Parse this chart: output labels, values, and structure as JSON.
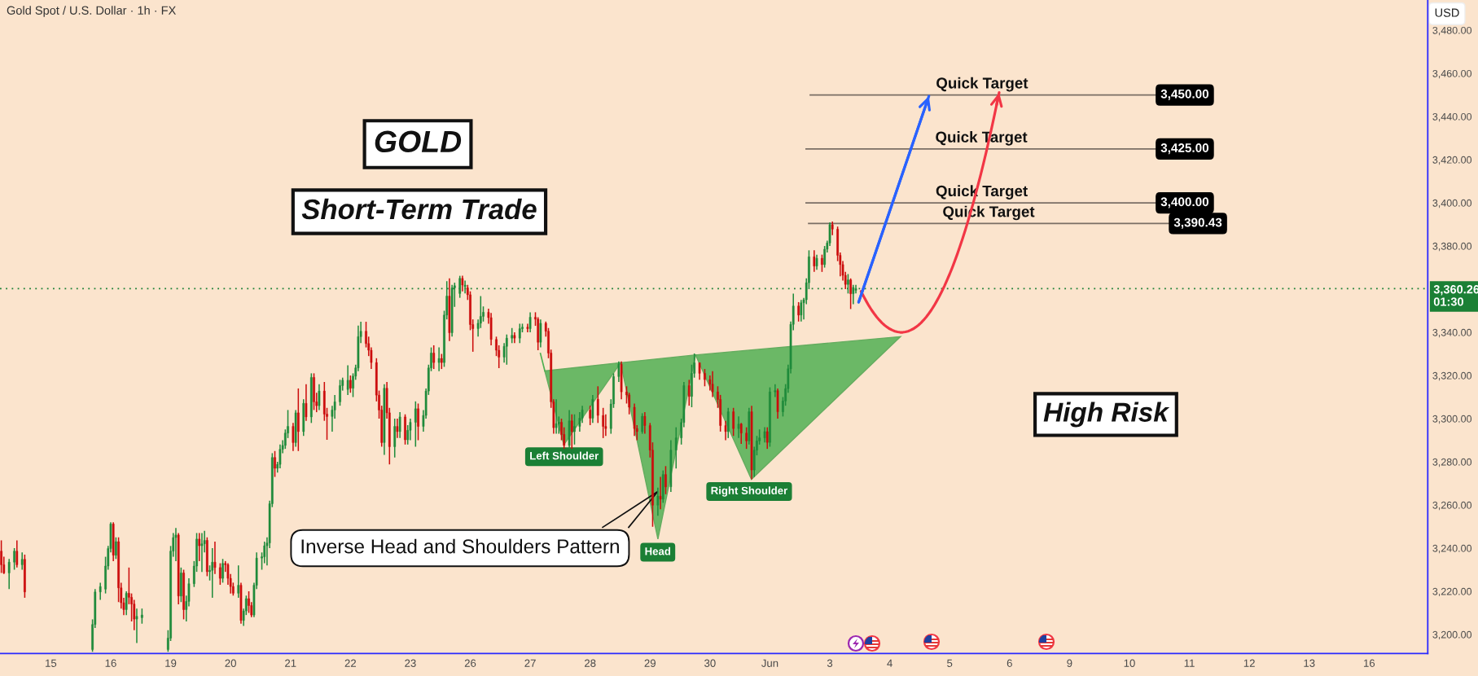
{
  "chart_data": {
    "type": "candlestick",
    "title": "Gold Spot / U.S. Dollar · 1h · FX",
    "ylabel": "USD",
    "ylim": [
      3191.2,
      3494
    ],
    "yticks": [
      {
        "value": 3200,
        "label": "3,200.00"
      },
      {
        "value": 3220,
        "label": "3,220.00"
      },
      {
        "value": 3240,
        "label": "3,240.00"
      },
      {
        "value": 3260,
        "label": "3,260.00"
      },
      {
        "value": 3280,
        "label": "3,280.00"
      },
      {
        "value": 3300,
        "label": "3,300.00"
      },
      {
        "value": 3320,
        "label": "3,320.00"
      },
      {
        "value": 3340,
        "label": "3,340.00"
      },
      {
        "value": 3380,
        "label": "3,380.00"
      },
      {
        "value": 3400,
        "label": "3,400.00"
      },
      {
        "value": 3420,
        "label": "3,420.00"
      },
      {
        "value": 3440,
        "label": "3,440.00"
      },
      {
        "value": 3460,
        "label": "3,460.00"
      },
      {
        "value": 3480,
        "label": "3,480.00"
      }
    ],
    "categories": [
      null,
      null,
      null,
      null,
      null,
      null,
      null,
      null,
      null,
      null,
      null,
      null,
      null,
      null,
      null,
      null,
      null,
      null,
      null,
      "15",
      null,
      null,
      null,
      null,
      null,
      null,
      null,
      null,
      null,
      null,
      null,
      null,
      null,
      null,
      null,
      null,
      null,
      null,
      null,
      null,
      null,
      null,
      "16",
      null,
      null,
      null,
      null,
      null,
      null,
      null,
      null,
      null,
      null,
      null,
      null,
      null,
      null,
      null,
      null,
      null,
      null,
      null,
      null,
      null,
      null,
      "19",
      null,
      null,
      null,
      null,
      null,
      null,
      null,
      null,
      null,
      null,
      null,
      null,
      null,
      null,
      null,
      null,
      null,
      null,
      null,
      null,
      null,
      null,
      "20",
      null,
      null,
      null,
      null,
      null,
      null,
      null,
      null,
      null,
      null,
      null,
      null,
      null,
      null,
      null,
      null,
      null,
      null,
      null,
      null,
      null,
      null,
      "21",
      null,
      null,
      null,
      null,
      null,
      null,
      null,
      null,
      null,
      null,
      null,
      null,
      null,
      null,
      null,
      null,
      null,
      null,
      null,
      null,
      null,
      null,
      "22",
      null,
      null,
      null,
      null,
      null,
      null,
      null,
      null,
      null,
      null,
      null,
      null,
      null,
      null,
      null,
      null,
      null,
      null,
      null,
      null,
      null,
      null,
      "23",
      null,
      null,
      null,
      null,
      null,
      null,
      null,
      null,
      null,
      null,
      null,
      null,
      null,
      null,
      null,
      null,
      null,
      null,
      null,
      null,
      null,
      null,
      "26",
      null,
      null,
      null,
      null,
      null,
      null,
      null,
      null,
      null,
      null,
      null,
      null,
      null,
      null,
      null,
      null,
      null,
      null,
      null,
      null,
      null,
      null,
      "27",
      null,
      null,
      null,
      null,
      null,
      null,
      null,
      null,
      null,
      null,
      null,
      null,
      null,
      null,
      null,
      null,
      null,
      null,
      null,
      null,
      null,
      null,
      "28",
      null,
      null,
      null,
      null,
      null,
      null,
      null,
      null,
      null,
      null,
      null,
      null,
      null,
      null,
      null,
      null,
      null,
      null,
      null,
      null,
      null,
      null,
      "29",
      null,
      null,
      null,
      null,
      null,
      null,
      null,
      null,
      null,
      null,
      null,
      null,
      null,
      null,
      null,
      null,
      null,
      null,
      null,
      null,
      null,
      null,
      "30",
      null,
      null,
      null,
      null,
      null,
      null,
      null,
      null,
      null,
      null,
      null,
      null,
      null,
      null,
      null,
      null,
      null,
      null,
      null,
      null,
      null,
      null,
      "Jun",
      null,
      null,
      null,
      null,
      null,
      null,
      null,
      null,
      null,
      null,
      null,
      null,
      null,
      null,
      null,
      null,
      null,
      null,
      null,
      null,
      null,
      null,
      "3",
      null,
      null,
      null,
      null,
      null,
      null,
      null,
      null,
      null,
      null,
      null,
      null,
      null,
      null,
      null,
      null,
      null,
      null,
      null,
      null,
      null,
      null,
      "4",
      null,
      null,
      null,
      null,
      null,
      null,
      null,
      null,
      null,
      null,
      null,
      null,
      null,
      null,
      null,
      null,
      null,
      null,
      null,
      null,
      null,
      null,
      "5",
      null,
      null,
      null,
      null,
      null,
      null,
      null,
      null,
      null,
      null,
      null,
      null,
      null,
      null,
      null,
      null,
      null,
      null,
      null,
      null,
      null,
      null,
      "6",
      null,
      null,
      null,
      null,
      null,
      null,
      null,
      null,
      null,
      null,
      null,
      null,
      null,
      null,
      null,
      null,
      null,
      null,
      null,
      null,
      null,
      null,
      "9",
      null,
      null,
      null,
      null,
      null,
      null,
      null,
      null,
      null,
      null,
      null,
      null,
      null,
      null,
      null,
      null,
      null,
      null,
      null,
      null,
      null,
      null,
      "10",
      null,
      null,
      null,
      null,
      null,
      null,
      null,
      null,
      null,
      null,
      null,
      null,
      null,
      null,
      null,
      null,
      null,
      null,
      null,
      null,
      null,
      null,
      "11",
      null,
      null,
      null,
      null,
      null,
      null,
      null,
      null,
      null,
      null,
      null,
      null,
      null,
      null,
      null,
      null,
      null,
      null,
      null,
      null,
      null,
      null,
      "12",
      null,
      null,
      null,
      null,
      null,
      null,
      null,
      null,
      null,
      null,
      null,
      null,
      null,
      null,
      null,
      null,
      null,
      null,
      null,
      null,
      null,
      null,
      "13",
      null,
      null,
      null,
      null,
      null,
      null,
      null,
      null,
      null,
      null,
      null,
      null,
      null,
      null,
      null,
      null,
      null,
      null,
      null,
      null,
      null,
      null,
      "16",
      null,
      null,
      null,
      null,
      null,
      null,
      null,
      null,
      null,
      null,
      null,
      null,
      null,
      null,
      null,
      null,
      null,
      null,
      null,
      null,
      null,
      null
    ],
    "ohlc": [
      [
        3238.6,
        3243.6,
        3228.5,
        3232.3
      ],
      [
        3232.3,
        3236,
        3228,
        3228.5
      ],
      null,
      [
        3228.5,
        3235,
        3221,
        3233.5
      ],
      null,
      [
        3233.5,
        3240,
        3230,
        3238.6
      ],
      [
        3238.6,
        3243.6,
        3231,
        3232.3
      ],
      null,
      [
        3232.3,
        3238,
        3230,
        3234.8
      ],
      [
        3234.8,
        3237,
        3217,
        3219.7
      ],
      null,
      null,
      null,
      null,
      null,
      null,
      null,
      null,
      null,
      null,
      null,
      null,
      null,
      null,
      null,
      null,
      null,
      null,
      null,
      null,
      null,
      null,
      null,
      null,
      null,
      [
        3193,
        3207,
        3192,
        3204.6
      ],
      [
        3204.6,
        3221,
        3203,
        3219.7
      ],
      null,
      [
        3219.7,
        3224,
        3216,
        3222.2
      ],
      null,
      [
        3221,
        3236,
        3219,
        3231.7
      ],
      [
        3231.7,
        3241,
        3230,
        3239.8
      ],
      [
        3239.8,
        3252,
        3238,
        3251.2
      ],
      [
        3251.2,
        3252,
        3234,
        3236.7
      ],
      [
        3236.7,
        3245,
        3235,
        3243
      ],
      [
        3243,
        3245,
        3215,
        3221.6
      ],
      [
        3221.6,
        3224,
        3212,
        3214.7
      ],
      [
        3214.7,
        3217,
        3209,
        3211.5
      ],
      [
        3211.5,
        3220,
        3209,
        3219.1
      ],
      [
        3219.1,
        3231,
        3214,
        3217.2
      ],
      [
        3217.2,
        3219,
        3206,
        3214.1
      ],
      [
        3214.1,
        3216,
        3202,
        3207.1
      ],
      [
        3207.1,
        3212,
        3196,
        3208.4
      ],
      null,
      [
        3207.8,
        3212,
        3205,
        3209
      ],
      null,
      null,
      null,
      null,
      null,
      null,
      null,
      null,
      null,
      [
        3193,
        3202,
        3192,
        3198.3
      ],
      [
        3198.3,
        3241,
        3197,
        3238.6
      ],
      [
        3238.6,
        3247,
        3236,
        3244.9
      ],
      [
        3244.9,
        3249.3,
        3234,
        3246.1
      ],
      [
        3246.1,
        3247,
        3214,
        3217.8
      ],
      [
        3217.8,
        3231,
        3215,
        3228.5
      ],
      [
        3228.5,
        3230,
        3207,
        3211.5
      ],
      [
        3211.5,
        3218,
        3206,
        3215.3
      ],
      [
        3215.3,
        3226,
        3213,
        3223.5
      ],
      null,
      [
        3223.5,
        3234,
        3222,
        3231.7
      ],
      [
        3231.7,
        3247,
        3229,
        3244.2
      ],
      [
        3244.2,
        3247,
        3234,
        3241.1
      ],
      [
        3241.1,
        3247,
        3229,
        3242
      ],
      [
        3242,
        3248,
        3238,
        3243.6
      ],
      [
        3243.6,
        3245,
        3227,
        3229.1
      ],
      [
        3229.1,
        3232,
        3225,
        3229.7
      ],
      [
        3229.7,
        3240,
        3217,
        3233.5
      ],
      [
        3233.5,
        3243,
        3228,
        3231
      ],
      null,
      [
        3231,
        3233,
        3223,
        3226
      ],
      [
        3226,
        3235,
        3224,
        3232.9
      ],
      [
        3232.9,
        3234,
        3229,
        3232.3
      ],
      [
        3232.3,
        3233,
        3223,
        3226
      ],
      [
        3226,
        3228,
        3219,
        3222.2
      ],
      [
        3222.2,
        3224,
        3218,
        3219.1
      ],
      null,
      [
        3219.1,
        3232,
        3217,
        3222.8
      ],
      [
        3222.8,
        3224,
        3205,
        3206.5
      ],
      [
        3206.5,
        3212,
        3204,
        3210.9
      ],
      [
        3210.9,
        3218,
        3209,
        3216.6
      ],
      [
        3216.6,
        3220,
        3210,
        3213.4
      ],
      [
        3213.4,
        3215,
        3208,
        3209
      ],
      [
        3209,
        3224,
        3208,
        3222.8
      ],
      [
        3222.8,
        3238,
        3221,
        3235.4
      ],
      null,
      [
        3235.4,
        3238,
        3230,
        3236
      ],
      [
        3236,
        3243,
        3233,
        3241.1
      ],
      [
        3241.1,
        3245,
        3232,
        3242.4
      ],
      [
        3242.4,
        3262,
        3240,
        3260.6
      ],
      [
        3260.6,
        3284,
        3259,
        3282
      ],
      [
        3282,
        3285,
        3273,
        3277
      ],
      [
        3277,
        3280,
        3275,
        3278.8
      ],
      [
        3278.8,
        3288,
        3277,
        3285.8
      ],
      [
        3285.8,
        3290,
        3284,
        3287.6
      ],
      [
        3287.6,
        3295,
        3286,
        3293.3
      ],
      [
        3293.3,
        3304,
        3291,
        3296.4
      ],
      null,
      [
        3296.4,
        3298,
        3285,
        3288.9
      ],
      [
        3288.9,
        3304,
        3287,
        3302.7
      ],
      [
        3302.7,
        3314,
        3285,
        3294
      ],
      null,
      [
        3294,
        3309,
        3292,
        3307.1
      ],
      [
        3307.1,
        3316,
        3299,
        3300.8
      ],
      null,
      [
        3300.8,
        3321,
        3298,
        3319.1
      ],
      [
        3319.1,
        3321,
        3304,
        3307.8
      ],
      [
        3307.8,
        3312,
        3303,
        3306
      ],
      [
        3306,
        3316,
        3304,
        3312.8
      ],
      null,
      [
        3312.8,
        3317,
        3299,
        3302.1
      ],
      [
        3302.1,
        3305,
        3290.2,
        3301
      ],
      null,
      [
        3301,
        3306,
        3294,
        3304
      ],
      [
        3304,
        3311,
        3300,
        3307.8
      ],
      null,
      [
        3307.8,
        3318,
        3306,
        3315.3
      ],
      [
        3315.3,
        3319,
        3313,
        3317.8
      ],
      null,
      [
        3313.5,
        3324.7,
        3311,
        3317.8
      ],
      [
        3317.8,
        3320,
        3312,
        3314.1
      ],
      [
        3314.1,
        3321,
        3310,
        3319.7
      ],
      [
        3319.7,
        3325,
        3318,
        3323.5
      ],
      [
        3323.5,
        3343.1,
        3322,
        3338
      ],
      [
        3338,
        3344.9,
        3335,
        3340.5
      ],
      null,
      [
        3340.5,
        3344.9,
        3333,
        3334.8
      ],
      [
        3334.8,
        3338,
        3329,
        3331.7
      ],
      [
        3331.7,
        3333,
        3323,
        3326
      ],
      null,
      [
        3326,
        3328,
        3308,
        3310.9
      ],
      [
        3310.9,
        3313,
        3300,
        3304
      ],
      [
        3304,
        3306,
        3287,
        3288.9
      ],
      [
        3288.9,
        3316,
        3283.2,
        3314.1
      ],
      [
        3314.1,
        3317,
        3300,
        3302.7
      ],
      [
        3302.7,
        3305,
        3278.8,
        3287
      ],
      null,
      [
        3287,
        3300,
        3282,
        3296.4
      ],
      [
        3296.4,
        3300,
        3291,
        3294
      ],
      [
        3294,
        3303,
        3291,
        3300.8
      ],
      null,
      [
        3300.8,
        3302,
        3288,
        3290.2
      ],
      [
        3290.2,
        3297,
        3288,
        3294.6
      ],
      [
        3294.6,
        3300,
        3290,
        3298.3
      ],
      null,
      [
        3298.3,
        3308,
        3287,
        3304.6
      ],
      [
        3304.6,
        3307,
        3290,
        3296.4
      ],
      null,
      [
        3296.4,
        3304,
        3294,
        3301.5
      ],
      [
        3301.5,
        3314,
        3300,
        3312.8
      ],
      [
        3312.8,
        3325,
        3311,
        3323.5
      ],
      [
        3323.5,
        3333,
        3322,
        3330.4
      ],
      [
        3330.4,
        3334,
        3323,
        3326
      ],
      null,
      [
        3326,
        3333,
        3322,
        3327.9
      ],
      [
        3327.9,
        3330,
        3323,
        3326
      ],
      [
        3326,
        3350,
        3324,
        3348
      ],
      [
        3348,
        3363.7,
        3346,
        3356.8
      ],
      [
        3356.8,
        3365,
        3336,
        3339.8
      ],
      [
        3339.8,
        3362,
        3338,
        3360.6
      ],
      [
        3360.6,
        3363,
        3351.8,
        3361.6
      ],
      null,
      [
        3358,
        3366.2,
        3356,
        3365
      ],
      [
        3365,
        3366.2,
        3359,
        3361.9
      ],
      [
        3361.2,
        3364,
        3358,
        3361.9
      ],
      [
        3360.6,
        3362,
        3355,
        3357.4
      ],
      [
        3357.4,
        3359,
        3341,
        3343.6
      ],
      [
        3343.6,
        3346,
        3331,
        3341.7
      ],
      null,
      [
        3341.7,
        3346,
        3338,
        3344.2
      ],
      [
        3344.2,
        3356.8,
        3342,
        3347.4
      ],
      [
        3347.4,
        3352,
        3345,
        3349.3
      ],
      null,
      [
        3349.3,
        3351,
        3344,
        3346.8
      ],
      [
        3346.8,
        3349,
        3334,
        3336.7
      ],
      null,
      [
        3336.7,
        3338,
        3329,
        3331.7
      ],
      [
        3331.7,
        3334,
        3323.4,
        3328.5
      ],
      null,
      [
        3328.5,
        3335,
        3326,
        3333.5
      ],
      [
        3333.5,
        3339,
        3325,
        3337.3
      ],
      null,
      [
        3337.3,
        3342,
        3335,
        3338.6
      ],
      [
        3338.6,
        3340,
        3335,
        3337.3
      ],
      null,
      [
        3337.3,
        3344,
        3335,
        3341.7
      ],
      [
        3341.7,
        3344,
        3340,
        3342.4
      ],
      null,
      [
        3342.4,
        3344,
        3340,
        3341.7
      ],
      [
        3341.7,
        3349.3,
        3340,
        3347
      ],
      null,
      [
        3347,
        3349.3,
        3343,
        3346.1
      ],
      [
        3346.1,
        3347,
        3331.7,
        3335.4
      ],
      [
        3335.4,
        3346,
        3333,
        3344.2
      ],
      null,
      [
        3344.2,
        3345,
        3338,
        3340.5
      ],
      [
        3340.5,
        3342,
        3328,
        3330.4
      ],
      [
        3330.4,
        3332,
        3305,
        3307.8
      ],
      [
        3307.8,
        3309,
        3293,
        3295.8
      ],
      [
        3295.8,
        3309,
        3293,
        3297.7
      ],
      [
        3297.7,
        3301,
        3293,
        3298.3
      ],
      [
        3298.3,
        3300,
        3290,
        3292.7
      ],
      [
        3292.7,
        3296,
        3286,
        3287.6
      ],
      null,
      [
        3287.6,
        3304,
        3286,
        3299
      ],
      [
        3299,
        3302,
        3286,
        3294
      ],
      [
        3294,
        3302,
        3288,
        3296.4
      ],
      null,
      [
        3296.4,
        3303,
        3294,
        3300.2
      ],
      [
        3300.2,
        3306,
        3298,
        3304
      ],
      null,
      null,
      [
        3304,
        3306,
        3297,
        3300.2
      ],
      [
        3300.2,
        3311,
        3298,
        3309
      ],
      null,
      [
        3309,
        3315,
        3298,
        3301.5
      ],
      null,
      [
        3301.5,
        3305,
        3291,
        3296.4
      ],
      [
        3296.4,
        3302,
        3292,
        3295.4
      ],
      null,
      [
        3295.4,
        3309,
        3293,
        3306.8
      ],
      [
        3306.8,
        3321,
        3305,
        3319.5
      ],
      null,
      [
        3319.5,
        3326.5,
        3317,
        3325.2
      ],
      [
        3325.2,
        3326.5,
        3309,
        3312.4
      ],
      null,
      [
        3312.4,
        3315,
        3307,
        3311
      ],
      [
        3311,
        3312,
        3302,
        3305.3
      ],
      null,
      [
        3305.3,
        3307,
        3292,
        3295.4
      ],
      [
        3295.4,
        3297,
        3290,
        3294
      ],
      null,
      [
        3294,
        3302.5,
        3293,
        3301.1
      ],
      [
        3301.1,
        3303,
        3293,
        3296.8
      ],
      null,
      [
        3296.8,
        3298,
        3282,
        3285.4
      ],
      [
        3285.4,
        3289,
        3249.9,
        3259.9
      ],
      null,
      [
        3259.9,
        3268,
        3255,
        3264.1
      ],
      [
        3264.1,
        3273,
        3258,
        3262.7
      ],
      [
        3262.7,
        3276,
        3261,
        3274.1
      ],
      [
        3274.1,
        3278,
        3265,
        3268.4
      ],
      null,
      [
        3268.4,
        3290,
        3266,
        3285.4
      ],
      null,
      [
        3285.4,
        3296,
        3276.9,
        3291.1
      ],
      null,
      [
        3291.1,
        3300,
        3288,
        3298.2
      ],
      [
        3298.2,
        3317,
        3296,
        3315.3
      ],
      null,
      [
        3315.3,
        3318,
        3306,
        3310.3
      ],
      [
        3310.3,
        3325,
        3305.3,
        3321
      ],
      [
        3321,
        3330.2,
        3319,
        3325.9
      ],
      null,
      [
        3325.9,
        3326,
        3318,
        3321
      ],
      null,
      [
        3321,
        3323,
        3315,
        3318.1
      ],
      null,
      [
        3318.1,
        3320,
        3313,
        3316
      ],
      [
        3316,
        3322,
        3310,
        3312.4
      ],
      null,
      [
        3312.4,
        3315,
        3305,
        3308.9
      ],
      [
        3308.9,
        3311,
        3294,
        3296.8
      ],
      null,
      [
        3296.8,
        3299,
        3290,
        3294
      ],
      [
        3294,
        3305,
        3291,
        3303.2
      ],
      null,
      [
        3303.2,
        3305,
        3292,
        3295.4
      ],
      null,
      [
        3295.4,
        3301,
        3291,
        3297.5
      ],
      [
        3297.5,
        3298,
        3288.3,
        3293.3
      ],
      null,
      [
        3293.3,
        3296,
        3286,
        3289.7
      ],
      [
        3289.7,
        3305,
        3288,
        3303.2
      ],
      [
        3303.2,
        3306,
        3271.9,
        3276.2
      ],
      [
        3276.2,
        3287,
        3273,
        3285.4
      ],
      [
        3285.4,
        3292,
        3283,
        3289.7
      ],
      [
        3289.7,
        3295,
        3288,
        3291.1
      ],
      null,
      [
        3291.1,
        3296,
        3289,
        3294
      ],
      [
        3294,
        3296,
        3286,
        3289
      ],
      [
        3289,
        3314.5,
        3287,
        3312.4
      ],
      null,
      [
        3312.4,
        3316,
        3310,
        3313
      ],
      [
        3313,
        3314,
        3300,
        3303.2
      ],
      null,
      [
        3303.2,
        3310,
        3301,
        3308.2
      ],
      [
        3308.2,
        3316,
        3306,
        3313.9
      ],
      [
        3313.9,
        3325,
        3312,
        3323.1
      ],
      [
        3323.1,
        3345,
        3321,
        3343.7
      ],
      [
        3343.7,
        3357.9,
        3341,
        3352.2
      ],
      null,
      [
        3352.2,
        3354,
        3345,
        3348
      ],
      [
        3348,
        3355,
        3345,
        3353.7
      ],
      [
        3353.7,
        3356,
        3346,
        3355.1
      ],
      [
        3355.1,
        3365,
        3353,
        3363
      ],
      [
        3363,
        3378,
        3360,
        3375
      ],
      null,
      [
        3375,
        3378,
        3368,
        3370.7
      ],
      [
        3370.7,
        3376,
        3369,
        3374.3
      ],
      null,
      [
        3374.3,
        3376,
        3368,
        3371.4
      ],
      [
        3371.4,
        3380,
        3370,
        3378.5
      ],
      [
        3378.5,
        3382.5,
        3377,
        3381.4
      ],
      [
        3381.4,
        3391,
        3380,
        3389.9
      ],
      [
        3389.9,
        3391.3,
        3385,
        3387.8
      ],
      null,
      [
        3387.8,
        3389,
        3373,
        3375.7
      ],
      [
        3375.7,
        3377,
        3366,
        3371.4
      ],
      [
        3371.4,
        3373,
        3364,
        3366.4
      ],
      [
        3366.4,
        3368,
        3360,
        3362.2
      ],
      [
        3362.2,
        3367,
        3358,
        3364.3
      ],
      [
        3364.3,
        3365,
        3350.8,
        3357.9
      ],
      [
        3357.9,
        3362,
        3353,
        3360.8
      ],
      [
        3359.5,
        3362,
        3358,
        3360.26
      ],
      null,
      null,
      null,
      null,
      null,
      null,
      null,
      null,
      null,
      null,
      null,
      null,
      null,
      null,
      null,
      null,
      null,
      null,
      null,
      null,
      null,
      null,
      null,
      null,
      null,
      null,
      null,
      null,
      null,
      null,
      null,
      null,
      null,
      null,
      null,
      null,
      null,
      null,
      null,
      null,
      null,
      null,
      null,
      null,
      null,
      null,
      null,
      null,
      null,
      null,
      null,
      null,
      null,
      null,
      null,
      null,
      null,
      null,
      null,
      null,
      null,
      null,
      null,
      null,
      null,
      null,
      null,
      null,
      null,
      null,
      null,
      null,
      null,
      null,
      null,
      null,
      null,
      null,
      null,
      null,
      null,
      null,
      null,
      null,
      null,
      null,
      null,
      null,
      null,
      null,
      null,
      null,
      null,
      null,
      null,
      null,
      null,
      null,
      null,
      null,
      null,
      null,
      null,
      null,
      null,
      null,
      null,
      null,
      null,
      null,
      null,
      null,
      null,
      null,
      null,
      null,
      null,
      null,
      null,
      null,
      null,
      null,
      null,
      null,
      null,
      null,
      null,
      null,
      null,
      null,
      null,
      null,
      null,
      null,
      null,
      null,
      null,
      null,
      null,
      null,
      null,
      null,
      null,
      null,
      null,
      null,
      null,
      null,
      null,
      null,
      null,
      null,
      null,
      null,
      null,
      null,
      null,
      null,
      null,
      null,
      null,
      null,
      null,
      null,
      null,
      null,
      null,
      null,
      null,
      null,
      null,
      null,
      null,
      null,
      null,
      null,
      null,
      null,
      null,
      null,
      null,
      null,
      null,
      null,
      null,
      null,
      null,
      null,
      null,
      null,
      null,
      null,
      null,
      null,
      null,
      null,
      null,
      null,
      null,
      null,
      null,
      null,
      null,
      null,
      null,
      null,
      null,
      null,
      null,
      null,
      null,
      null,
      null,
      null,
      null,
      null,
      null,
      null,
      null
    ],
    "series": [
      {
        "type": "line",
        "color": "#f23645",
        "values": [
          null,
          null,
          null,
          null,
          null,
          null,
          null,
          null,
          null,
          null,
          null,
          null,
          null,
          null,
          null,
          null,
          null,
          null,
          null,
          null,
          null,
          null,
          null,
          null,
          null,
          null,
          null,
          null,
          null,
          null,
          null,
          null,
          null,
          null,
          null,
          null,
          null,
          null,
          null,
          null,
          null,
          null,
          null,
          null,
          null,
          null,
          null,
          null,
          null,
          null,
          null,
          null,
          null,
          null,
          null,
          null,
          null,
          null,
          null,
          null,
          null,
          null,
          null,
          null,
          null,
          null,
          null,
          null,
          null,
          null,
          null,
          null,
          null,
          null,
          null,
          null,
          null,
          null,
          null,
          null,
          null,
          null,
          null,
          null,
          null,
          null,
          null,
          null,
          null,
          null,
          null,
          null,
          null,
          null,
          null,
          null,
          null,
          null,
          null,
          null,
          null,
          null,
          null,
          null,
          null,
          null,
          null,
          null,
          null,
          null,
          null,
          null,
          null,
          null,
          null,
          null,
          null,
          null,
          null,
          null,
          null,
          null,
          null,
          null,
          null,
          null,
          null,
          null,
          null,
          null,
          null,
          null,
          null,
          null,
          null,
          null,
          null,
          null,
          null,
          null,
          null,
          null,
          null,
          null,
          null,
          null,
          null,
          null,
          null,
          null,
          null,
          null,
          null,
          null,
          null,
          null,
          null,
          null,
          null,
          null,
          null,
          null,
          null,
          null,
          null,
          null,
          null,
          null,
          null,
          null,
          null,
          null,
          null,
          null,
          null,
          null,
          null,
          null,
          null,
          null,
          null,
          null,
          null,
          null,
          null,
          null,
          null,
          null,
          null,
          null,
          null,
          null,
          null,
          null,
          null,
          null,
          null,
          null,
          null,
          null,
          null,
          null,
          null,
          null,
          null,
          null,
          null,
          null,
          null,
          null,
          null,
          null,
          null,
          null,
          null,
          null,
          null,
          null,
          null,
          null,
          null,
          null,
          null,
          null,
          null,
          null,
          null,
          null,
          null,
          null,
          null,
          null,
          null,
          null,
          null,
          null,
          null,
          null,
          null,
          null,
          null,
          null,
          null,
          null,
          null,
          null,
          null,
          null,
          null,
          null,
          null,
          null,
          null,
          null,
          null,
          null,
          null,
          null,
          null,
          null,
          null,
          null,
          null,
          null,
          null,
          null,
          null,
          null,
          null,
          null,
          null,
          null,
          null,
          null,
          null,
          null,
          null,
          null,
          null,
          null,
          null,
          null,
          null,
          null,
          null,
          null,
          null,
          null,
          null,
          null,
          null,
          null,
          null,
          null,
          null,
          null,
          null,
          null,
          null,
          null,
          null,
          null,
          null,
          null,
          null,
          null,
          null,
          null,
          null,
          null,
          null,
          null,
          null,
          null,
          null,
          null,
          null,
          null,
          null,
          null,
          null,
          null,
          null,
          null,
          null,
          null,
          null,
          null,
          null,
          null,
          3359.0,
          3356.6,
          3354.4,
          3352.3,
          3350.4,
          3348.7,
          3347.1,
          3345.7,
          3344.4,
          3343.3,
          3342.4,
          3341.6,
          3341.0,
          3340.5,
          3340.2,
          3340.0,
          3340.0,
          3340.2,
          3340.5,
          3341.0,
          3341.6,
          3342.4,
          3343.3,
          3344.4,
          3345.7,
          3347.1,
          3348.7,
          3350.4,
          3352.3,
          3354.4,
          3356.6,
          3359.0,
          3361.5,
          3364.2,
          3367.0,
          3370.0,
          3373.2,
          3376.5,
          3380.0,
          3383.6,
          3387.4,
          3391.4,
          3395.5,
          3399.7,
          3404.2,
          3408.8,
          3413.5,
          3418.4,
          3423.4,
          3428.7,
          3434.0,
          3439.6,
          3445.3,
          3451.1,
          null,
          null,
          null,
          null,
          null,
          null,
          null,
          null,
          null,
          null,
          null,
          null,
          null,
          null,
          null,
          null,
          null,
          null,
          null,
          null,
          null,
          null,
          null,
          null,
          null,
          null,
          null,
          null,
          null,
          null,
          null,
          null,
          null,
          null,
          null,
          null,
          null,
          null,
          null,
          null,
          null,
          null,
          null,
          null,
          null,
          null,
          null,
          null,
          null,
          null,
          null,
          null,
          null,
          null,
          null,
          null,
          null,
          null,
          null,
          null,
          null,
          null,
          null,
          null,
          null,
          null,
          null,
          null,
          null,
          null,
          null,
          null,
          null,
          null,
          null,
          null,
          null,
          null,
          null,
          null,
          null,
          null,
          null,
          null,
          null,
          null,
          null,
          null,
          null,
          null,
          null,
          null,
          null,
          null,
          null,
          null,
          null,
          null,
          null,
          null,
          null,
          null,
          null,
          null,
          null,
          null,
          null,
          null,
          null,
          null,
          null,
          null,
          null,
          null,
          null,
          null,
          null,
          null,
          null,
          null,
          null,
          null,
          null,
          null,
          null,
          null,
          null,
          null,
          null,
          null,
          null,
          null,
          null,
          null,
          null,
          null,
          null,
          null,
          null,
          null,
          null,
          null,
          null,
          null,
          null,
          null,
          null,
          null,
          null,
          null,
          null,
          null,
          null,
          null,
          null,
          null,
          null,
          null,
          null,
          null,
          null,
          null,
          null,
          null
        ]
      }
    ],
    "ref_lines": [
      {
        "axis": "y",
        "value": 3360.26,
        "label": "3,360.26\n01:30",
        "color": "#1b8035",
        "line_style": "dotted"
      },
      {
        "axis": "y",
        "value": 3450,
        "label": "3,450.00",
        "color": "#7a6e64"
      },
      {
        "axis": "y",
        "value": 3425,
        "label": "3,425.00",
        "color": "#7a6e64"
      },
      {
        "axis": "y",
        "value": 3400,
        "label": "3,400.00",
        "color": "#7a6e64"
      },
      {
        "axis": "y",
        "value": 3390.43,
        "label": "3,390.43",
        "color": "#7a6e64"
      }
    ],
    "annotations": [
      "GOLD",
      "Short-Term Trade",
      "High Risk",
      "Left Shoulder",
      "Head",
      "Right Shoulder",
      "Inverse Head and Shoulders Pattern",
      {
        "text": "Quick Target",
        "y": 3450
      },
      {
        "text": "Quick Target",
        "y": 3425
      },
      {
        "text": "Quick Target",
        "y": 3400
      },
      {
        "text": "Quick Target",
        "y": 3390.43
      }
    ]
  }
}
